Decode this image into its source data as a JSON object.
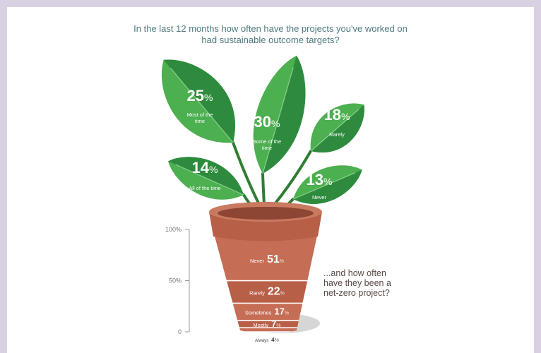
{
  "chart_data": [
    {
      "type": "leaf",
      "title": "In the last 12 months how often have the projects you've worked on had sustainable outcome targets?",
      "unit": "%",
      "categories": [
        "Most of the time",
        "Some of the time",
        "Rarely",
        "All of the time",
        "Never"
      ],
      "values": [
        25,
        30,
        18,
        14,
        13
      ],
      "colors": [
        "#4caf50",
        "#2e8b3e"
      ]
    },
    {
      "type": "stacked",
      "annotation": "...and how often have they been a net-zero project?",
      "unit": "%",
      "categories": [
        "Always",
        "Mostly",
        "Sometimes",
        "Rarely",
        "Never"
      ],
      "values": [
        4,
        7,
        17,
        22,
        51
      ],
      "colors": [
        "#c56d55",
        "#b85f48"
      ],
      "ylim": [
        0,
        100
      ],
      "yticks": [
        0,
        {
          "value": 50,
          "label": "50%"
        },
        {
          "value": 100,
          "label": "100%"
        }
      ]
    }
  ]
}
